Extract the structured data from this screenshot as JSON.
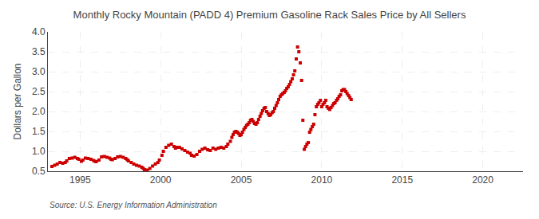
{
  "chart_data": {
    "type": "scatter",
    "title": "Monthly Rocky Mountain (PADD 4) Premium Gasoline Rack Sales Price by All Sellers",
    "y_label": "Dollars per Gallon",
    "annotations": [
      "Source: U.S. Energy Information Administration"
    ],
    "color": "#cc0000",
    "marker": "square",
    "grid": true,
    "xlim": [
      1993.0,
      2022.5
    ],
    "xticks": [
      1995,
      2000,
      2005,
      2010,
      2015,
      2020
    ],
    "ylim": [
      0.5,
      4.0
    ],
    "yticks": [
      0.5,
      {
        "value": 1,
        "label": "1.0"
      },
      1.5,
      {
        "value": 2,
        "label": "2.0"
      },
      2.5,
      {
        "value": 3,
        "label": "3.0"
      },
      3.5,
      {
        "value": 4,
        "label": "4.0"
      }
    ],
    "x": [
      1993.25,
      1993.42,
      1993.58,
      1993.75,
      1993.92,
      1994.08,
      1994.17,
      1994.33,
      1994.5,
      1994.67,
      1994.83,
      1994.92,
      1995.08,
      1995.17,
      1995.33,
      1995.5,
      1995.67,
      1995.83,
      1995.92,
      1996.0,
      1996.17,
      1996.33,
      1996.5,
      1996.67,
      1996.83,
      1996.92,
      1997.0,
      1997.17,
      1997.33,
      1997.5,
      1997.67,
      1997.83,
      1997.92,
      1998.0,
      1998.17,
      1998.33,
      1998.5,
      1998.67,
      1998.83,
      1998.92,
      1999.0,
      1999.17,
      1999.33,
      1999.5,
      1999.67,
      1999.83,
      1999.92,
      2000.08,
      2000.17,
      2000.33,
      2000.5,
      2000.67,
      2000.83,
      2000.92,
      2001.0,
      2001.17,
      2001.33,
      2001.5,
      2001.67,
      2001.83,
      2001.92,
      2002.08,
      2002.25,
      2002.42,
      2002.58,
      2002.75,
      2002.92,
      2003.08,
      2003.25,
      2003.42,
      2003.58,
      2003.75,
      2003.92,
      2004.08,
      2004.17,
      2004.33,
      2004.42,
      2004.5,
      2004.58,
      2004.67,
      2004.75,
      2004.83,
      2004.92,
      2005.0,
      2005.08,
      2005.17,
      2005.25,
      2005.33,
      2005.42,
      2005.5,
      2005.58,
      2005.67,
      2005.75,
      2005.83,
      2005.92,
      2006.0,
      2006.08,
      2006.17,
      2006.25,
      2006.33,
      2006.42,
      2006.5,
      2006.58,
      2006.67,
      2006.75,
      2006.83,
      2006.92,
      2007.0,
      2007.08,
      2007.17,
      2007.25,
      2007.33,
      2007.42,
      2007.5,
      2007.58,
      2007.67,
      2007.75,
      2007.83,
      2007.92,
      2008.0,
      2008.08,
      2008.17,
      2008.25,
      2008.33,
      2008.42,
      2008.5,
      2008.58,
      2008.67,
      2008.75,
      2008.83,
      2008.92,
      2009.0,
      2009.08,
      2009.17,
      2009.25,
      2009.33,
      2009.42,
      2009.5,
      2009.58,
      2009.67,
      2009.75,
      2009.83,
      2009.92,
      2010.0,
      2010.08,
      2010.17,
      2010.25,
      2010.33,
      2010.42,
      2010.5,
      2010.58,
      2010.67,
      2010.75,
      2010.83,
      2010.92,
      2011.0,
      2011.08,
      2011.17,
      2011.25,
      2011.33,
      2011.42,
      2011.5,
      2011.58,
      2011.67,
      2011.75,
      2011.83
    ],
    "values": [
      0.62,
      0.65,
      0.68,
      0.72,
      0.7,
      0.72,
      0.76,
      0.82,
      0.83,
      0.85,
      0.82,
      0.8,
      0.75,
      0.78,
      0.83,
      0.82,
      0.8,
      0.77,
      0.75,
      0.74,
      0.78,
      0.86,
      0.87,
      0.85,
      0.83,
      0.8,
      0.79,
      0.82,
      0.86,
      0.87,
      0.85,
      0.82,
      0.79,
      0.76,
      0.72,
      0.68,
      0.65,
      0.63,
      0.6,
      0.57,
      0.54,
      0.53,
      0.57,
      0.63,
      0.68,
      0.72,
      0.78,
      0.9,
      1.0,
      1.1,
      1.15,
      1.18,
      1.12,
      1.08,
      1.1,
      1.1,
      1.06,
      1.02,
      0.98,
      0.95,
      0.9,
      0.88,
      0.92,
      1.0,
      1.05,
      1.08,
      1.04,
      1.02,
      1.08,
      1.05,
      1.08,
      1.1,
      1.08,
      1.12,
      1.18,
      1.25,
      1.35,
      1.42,
      1.48,
      1.5,
      1.48,
      1.45,
      1.4,
      1.42,
      1.48,
      1.55,
      1.6,
      1.65,
      1.68,
      1.72,
      1.78,
      1.8,
      1.75,
      1.7,
      1.68,
      1.72,
      1.8,
      1.88,
      1.95,
      2.02,
      2.08,
      2.1,
      2.0,
      1.95,
      1.9,
      1.92,
      1.97,
      2.0,
      2.08,
      2.15,
      2.22,
      2.3,
      2.38,
      2.42,
      2.45,
      2.48,
      2.52,
      2.58,
      2.62,
      2.68,
      2.75,
      2.82,
      2.92,
      3.02,
      3.32,
      3.62,
      3.5,
      3.22,
      2.78,
      1.78,
      1.05,
      1.12,
      1.18,
      1.22,
      1.48,
      1.55,
      1.62,
      1.68,
      1.92,
      2.12,
      2.18,
      2.22,
      2.28,
      2.12,
      2.18,
      2.22,
      2.28,
      2.12,
      2.08,
      2.05,
      2.1,
      2.15,
      2.2,
      2.22,
      2.28,
      2.32,
      2.38,
      2.42,
      2.52,
      2.55,
      2.55,
      2.5,
      2.45,
      2.4,
      2.35,
      2.3
    ]
  }
}
